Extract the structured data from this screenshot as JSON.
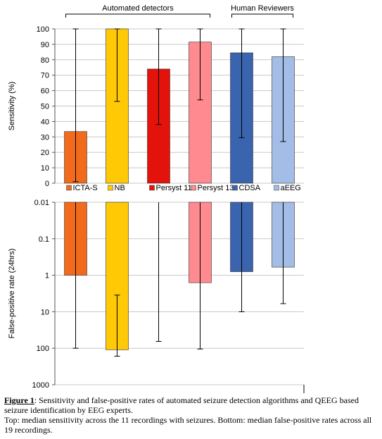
{
  "chart_data": [
    {
      "type": "bar",
      "ylabel": "Sensitivity (%)",
      "ylim": [
        0,
        100
      ],
      "yticks": [
        0,
        10,
        20,
        30,
        40,
        50,
        60,
        70,
        80,
        90,
        100
      ],
      "grid": true,
      "groups": [
        {
          "label": "Automated detectors",
          "categories": [
            "ICTA-S",
            "NB",
            "Persyst 11",
            "Persyst 13"
          ]
        },
        {
          "label": "Human Reviewers",
          "categories": [
            "CDSA",
            "aEEG"
          ]
        }
      ],
      "series": [
        {
          "name": "ICTA-S",
          "color": "#F26B1D",
          "value": 33.5,
          "error_low": 1,
          "error_high": 100
        },
        {
          "name": "NB",
          "color": "#FFC905",
          "value": 100,
          "error_low": 53,
          "error_high": 100
        },
        {
          "name": "Persyst 11",
          "color": "#E3120B",
          "value": 74,
          "error_low": 38,
          "error_high": 100
        },
        {
          "name": "Persyst 13",
          "color": "#FF8A8F",
          "value": 91.5,
          "error_low": 54,
          "error_high": 100
        },
        {
          "name": "CDSA",
          "color": "#3A65AE",
          "value": 84.5,
          "error_low": 29.5,
          "error_high": 100
        },
        {
          "name": "aEEG",
          "color": "#A3BDE6",
          "value": 82,
          "error_low": 27,
          "error_high": 100
        }
      ],
      "legend": {
        "placement": "bottom"
      }
    },
    {
      "type": "bar",
      "ylabel": "False-positive rate (24hrs)",
      "yscale": "log",
      "yaxis_inverted": true,
      "ylim": [
        0.01,
        1000
      ],
      "yticks": [
        0.01,
        0.1,
        1,
        10,
        100,
        1000
      ],
      "ytick_labels": [
        "0.01",
        "0.1",
        "1",
        "10",
        "100",
        "1000"
      ],
      "grid": true,
      "series": [
        {
          "name": "ICTA-S",
          "color": "#F26B1D",
          "value": 1,
          "error_low": 0.01,
          "error_high": 100
        },
        {
          "name": "NB",
          "color": "#FFC905",
          "value": 110,
          "error_low": 3.5,
          "error_high": 165
        },
        {
          "name": "Persyst 11",
          "color": "#E3120B",
          "value": 0.01,
          "error_low": 0.01,
          "error_high": 65
        },
        {
          "name": "Persyst 13",
          "color": "#FF8A8F",
          "value": 1.6,
          "error_low": 0.01,
          "error_high": 105
        },
        {
          "name": "CDSA",
          "color": "#3A65AE",
          "value": 0.8,
          "error_low": 0.01,
          "error_high": 10
        },
        {
          "name": "aEEG",
          "color": "#A3BDE6",
          "value": 0.6,
          "error_low": 0.01,
          "error_high": 6
        }
      ]
    }
  ],
  "caption": {
    "label": "Figure 1",
    "line1": ": Sensitivity and false-positive rates of automated seizure detection algorithms and QEEG based seizure identification by EEG experts.",
    "line2": "Top: median sensitivity across the 11 recordings with seizures. Bottom: median false-positive rates across all 19 recordings."
  }
}
